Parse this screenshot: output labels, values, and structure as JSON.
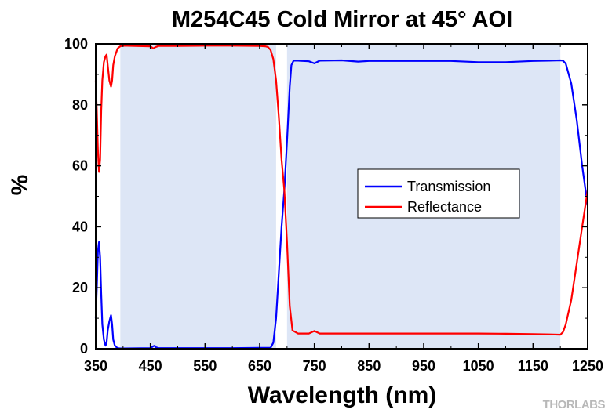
{
  "chart_data": {
    "type": "line",
    "title": "M254C45 Cold Mirror at 45° AOI",
    "xlabel": "Wavelength (nm)",
    "ylabel": "%",
    "xlim": [
      350,
      1250
    ],
    "ylim": [
      0,
      100
    ],
    "xticks": [
      350,
      450,
      550,
      650,
      750,
      850,
      950,
      1050,
      1150,
      1250
    ],
    "yticks": [
      0,
      20,
      40,
      60,
      80,
      100
    ],
    "grid": false,
    "legend_position": "center-right",
    "shaded_bands": [
      [
        395,
        680
      ],
      [
        700,
        1200
      ]
    ],
    "series": [
      {
        "name": "Transmission",
        "color": "#0000ff",
        "x": [
          350,
          352,
          354,
          356,
          358,
          360,
          362,
          365,
          368,
          370,
          372,
          375,
          378,
          380,
          382,
          385,
          388,
          390,
          395,
          400,
          450,
          455,
          458,
          460,
          465,
          500,
          550,
          600,
          650,
          670,
          675,
          680,
          685,
          690,
          695,
          700,
          705,
          708,
          712,
          720,
          740,
          750,
          760,
          800,
          830,
          850,
          900,
          950,
          1000,
          1050,
          1100,
          1150,
          1180,
          1200,
          1205,
          1210,
          1220,
          1230,
          1240,
          1250
        ],
        "y": [
          10,
          20,
          32,
          35,
          30,
          18,
          8,
          3,
          1,
          2,
          6,
          9,
          11,
          8,
          3,
          1,
          0.5,
          0.2,
          0.1,
          0.1,
          0.2,
          0.8,
          1,
          0.5,
          0.2,
          0.2,
          0.2,
          0.2,
          0.3,
          0.3,
          2,
          10,
          25,
          40,
          52,
          68,
          86,
          93,
          94.5,
          94.5,
          94.3,
          93.6,
          94.5,
          94.6,
          94.2,
          94.4,
          94.4,
          94.4,
          94.4,
          94,
          94,
          94.4,
          94.5,
          94.6,
          94.5,
          93.5,
          87,
          75,
          60,
          47
        ]
      },
      {
        "name": "Reflectance",
        "color": "#ff0000",
        "x": [
          350,
          352,
          354,
          356,
          358,
          360,
          362,
          365,
          368,
          370,
          372,
          375,
          378,
          380,
          382,
          385,
          388,
          390,
          395,
          400,
          450,
          455,
          460,
          465,
          500,
          550,
          600,
          650,
          660,
          665,
          670,
          675,
          680,
          685,
          690,
          695,
          700,
          705,
          710,
          720,
          740,
          750,
          760,
          800,
          850,
          900,
          950,
          1000,
          1050,
          1100,
          1150,
          1180,
          1200,
          1205,
          1210,
          1220,
          1230,
          1240,
          1250
        ],
        "y": [
          88,
          78,
          65,
          58,
          62,
          78,
          88,
          94,
          96,
          96.5,
          93,
          88,
          86,
          88,
          93,
          96,
          97.5,
          98.5,
          99.2,
          99.4,
          99.2,
          98.5,
          99,
          99.3,
          99.3,
          99.4,
          99.4,
          99.3,
          99.2,
          99,
          98,
          95,
          88,
          76,
          62,
          52,
          35,
          14,
          6,
          5,
          5,
          5.8,
          5,
          5,
          5,
          5,
          5,
          5,
          5,
          4.9,
          4.8,
          4.7,
          4.6,
          5.5,
          8,
          16,
          28,
          40,
          52
        ]
      }
    ]
  },
  "watermark": {
    "text": "THORLABS"
  }
}
